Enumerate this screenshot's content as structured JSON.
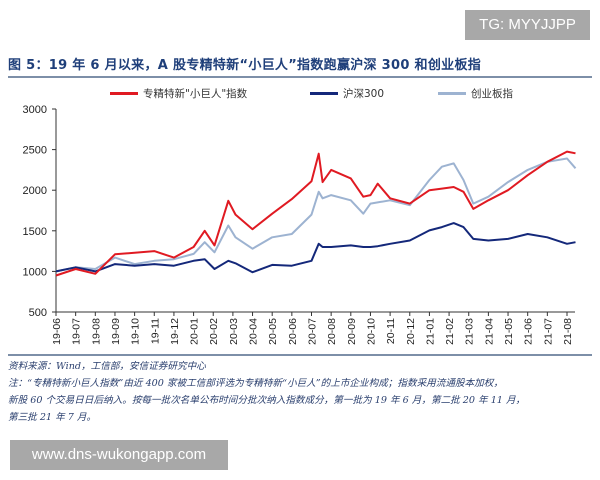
{
  "watermark_top": "TG: MYYJJPP",
  "watermark_bottom": "www.dns-wukongapp.com",
  "title": "图 5：19 年 6 月以来，A 股专精特新“小巨人”指数跑赢沪深 300 和创业板指",
  "notes": {
    "source": "资料来源：Wind，工信部，安信证券研究中心",
    "line1": "注：“专精特新小巨人指数”由近 400 家被工信部评选为专精特新“小巨人”的上市企业构成；指数采用流通股本加权，",
    "line2": "新股 60 个交易日日后纳入。按每一批次名单公布时间分批次纳入指数成分，第一批为 19 年 6 月，第二批 20 年 11 月，",
    "line3": "第三批 21 年 7 月。"
  },
  "chart_data": {
    "type": "line",
    "legend_position": "top",
    "grid": false,
    "ylim": [
      500,
      3000
    ],
    "y_ticks": [
      "500",
      "1000",
      "1500",
      "2000",
      "2500",
      "3000"
    ],
    "x_ticks": [
      "19-06",
      "19-07",
      "19-08",
      "19-09",
      "19-10",
      "19-11",
      "19-12",
      "20-01",
      "20-02",
      "20-03",
      "20-04",
      "20-05",
      "20-06",
      "20-07",
      "20-08",
      "20-09",
      "20-10",
      "20-11",
      "20-12",
      "21-01",
      "21-02",
      "21-03",
      "21-04",
      "21-05",
      "21-06",
      "21-07",
      "21-08"
    ],
    "x": [
      "2019-06-01",
      "2019-07-01",
      "2019-08-01",
      "2019-09-01",
      "2019-10-01",
      "2019-11-01",
      "2019-12-01",
      "2020-01-01",
      "2020-01-18",
      "2020-02-03",
      "2020-02-24",
      "2020-03-05",
      "2020-04-01",
      "2020-05-01",
      "2020-06-01",
      "2020-07-01",
      "2020-07-12",
      "2020-07-18",
      "2020-08-01",
      "2020-09-01",
      "2020-09-20",
      "2020-10-01",
      "2020-10-12",
      "2020-11-01",
      "2020-12-01",
      "2021-01-01",
      "2021-01-20",
      "2021-02-08",
      "2021-02-23",
      "2021-03-08",
      "2021-04-01",
      "2021-05-01",
      "2021-06-01",
      "2021-07-01",
      "2021-08-01",
      "2021-08-14"
    ],
    "series": [
      {
        "name": "专精特新\"小巨人\"指数",
        "color": "#e01a22",
        "values": [
          950,
          1030,
          970,
          1210,
          1230,
          1250,
          1170,
          1300,
          1500,
          1320,
          1870,
          1700,
          1520,
          1710,
          1890,
          2110,
          2450,
          2100,
          2250,
          2145,
          1920,
          1940,
          2080,
          1900,
          1835,
          2000,
          2020,
          2040,
          1980,
          1770,
          1875,
          2000,
          2185,
          2350,
          2475,
          2455
        ]
      },
      {
        "name": "沪深300",
        "color": "#14287a",
        "values": [
          1000,
          1050,
          1000,
          1090,
          1070,
          1090,
          1070,
          1130,
          1150,
          1030,
          1130,
          1100,
          990,
          1080,
          1070,
          1130,
          1340,
          1300,
          1300,
          1320,
          1300,
          1300,
          1310,
          1340,
          1380,
          1505,
          1545,
          1595,
          1545,
          1400,
          1380,
          1400,
          1460,
          1420,
          1340,
          1360
        ]
      },
      {
        "name": "创业板指",
        "color": "#9db3d1",
        "values": [
          1000,
          1050,
          1030,
          1170,
          1090,
          1130,
          1150,
          1215,
          1360,
          1235,
          1565,
          1420,
          1280,
          1420,
          1460,
          1700,
          1980,
          1900,
          1940,
          1875,
          1710,
          1835,
          1850,
          1875,
          1815,
          2125,
          2290,
          2330,
          2125,
          1835,
          1920,
          2100,
          2250,
          2350,
          2390,
          2270
        ]
      }
    ]
  }
}
